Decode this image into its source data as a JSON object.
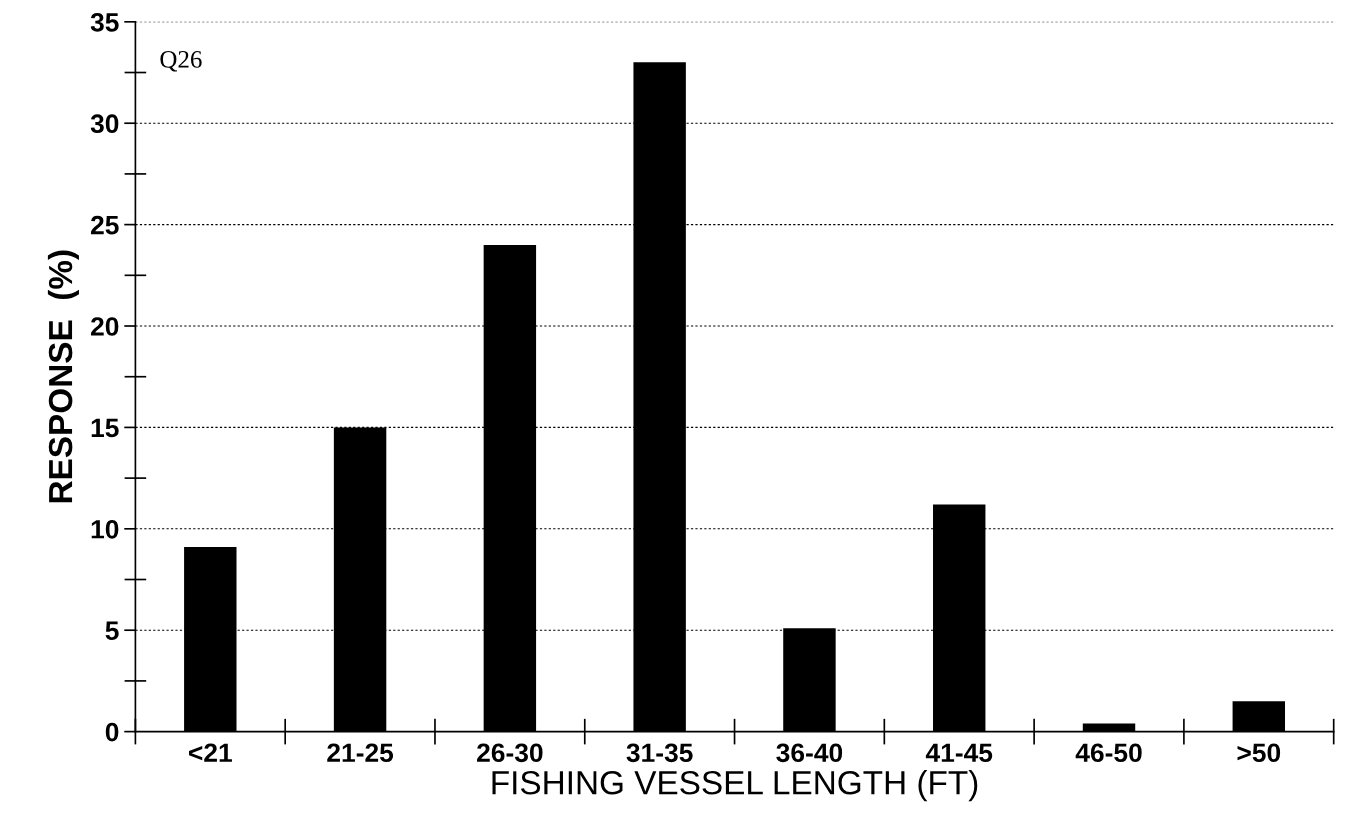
{
  "chart_data": {
    "type": "bar",
    "xlabel": "FISHING VESSEL LENGTH (FT)",
    "ylabel": "RESPONSE  (%)",
    "categories": [
      "<21",
      "21-25",
      "26-30",
      "31-35",
      "36-40",
      "41-45",
      "46-50",
      ">50"
    ],
    "values": [
      9.1,
      15,
      24,
      33,
      5.1,
      11.2,
      0.4,
      1.5
    ],
    "color": "#000000",
    "ylim": [
      0,
      35
    ],
    "yticks": [
      0,
      5,
      10,
      15,
      20,
      25,
      30,
      35
    ],
    "grid": "y",
    "annotations": [
      "Q26"
    ]
  }
}
